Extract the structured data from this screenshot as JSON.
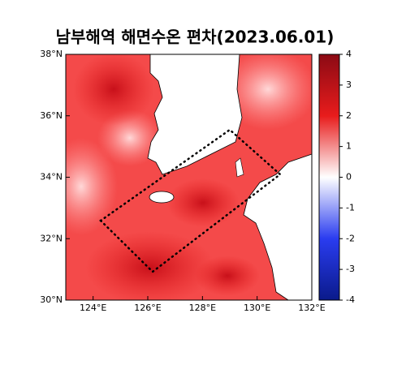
{
  "map": {
    "title": "남부해역 해면수온 편차(2023.06.01)",
    "xlim": [
      123,
      132
    ],
    "ylim": [
      30,
      38
    ],
    "xticks": [
      {
        "value": 124,
        "label": "124°E"
      },
      {
        "value": 126,
        "label": "126°E"
      },
      {
        "value": 128,
        "label": "128°E"
      },
      {
        "value": 130,
        "label": "130°E"
      },
      {
        "value": 132,
        "label": "132°E"
      }
    ],
    "yticks": [
      {
        "value": 30,
        "label": "30°N"
      },
      {
        "value": 32,
        "label": "32°N"
      },
      {
        "value": 34,
        "label": "34°N"
      },
      {
        "value": 36,
        "label": "36°N"
      },
      {
        "value": 38,
        "label": "38°N"
      }
    ],
    "colorbar": {
      "lim": [
        -4,
        4
      ],
      "ticks": [
        4,
        3,
        2,
        1,
        0,
        -1,
        -2,
        -3,
        -4
      ]
    }
  }
}
